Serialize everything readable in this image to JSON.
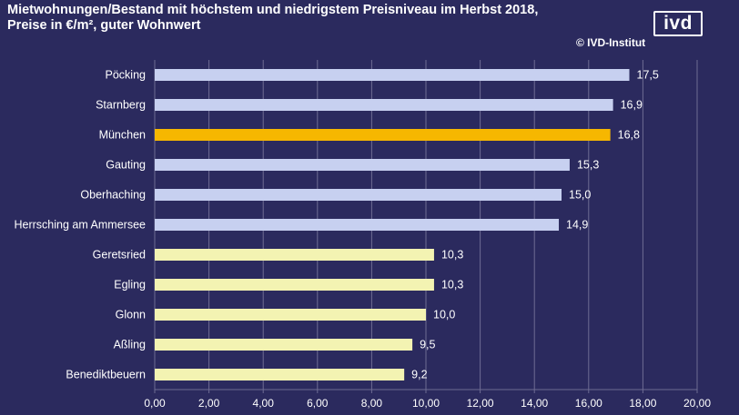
{
  "title": {
    "line1": "Mietwohnungen/Bestand mit höchstem und niedrigstem Preisniveau im Herbst 2018,",
    "line2": "Preise in €/m², guter  Wohnwert"
  },
  "copyright": "© IVD-Institut",
  "logo": "ivd",
  "colors": {
    "background": "#2b2a5e",
    "high": "#c7d0f0",
    "highlight": "#f6b700",
    "low": "#f3f3b2",
    "grid": "#6e6c93"
  },
  "chart_data": {
    "type": "bar",
    "orientation": "horizontal",
    "categories": [
      "Pöcking",
      "Starnberg",
      "München",
      "Gauting",
      "Oberhaching",
      "Herrsching am Ammersee",
      "Geretsried",
      "Egling",
      "Glonn",
      "Aßling",
      "Benediktbeuern"
    ],
    "values": [
      17.5,
      16.9,
      16.8,
      15.3,
      15.0,
      14.9,
      10.3,
      10.3,
      10.0,
      9.5,
      9.2
    ],
    "value_labels": [
      "17,5",
      "16,9",
      "16,8",
      "15,3",
      "15,0",
      "14,9",
      "10,3",
      "10,3",
      "10,0",
      "9,5",
      "9,2"
    ],
    "groups": [
      "high",
      "high",
      "highlight",
      "high",
      "high",
      "high",
      "low",
      "low",
      "low",
      "low",
      "low"
    ],
    "xlim": [
      0,
      20
    ],
    "xticks": [
      0,
      2,
      4,
      6,
      8,
      10,
      12,
      14,
      16,
      18,
      20
    ],
    "xtick_labels": [
      "0,00",
      "2,00",
      "4,00",
      "6,00",
      "8,00",
      "10,00",
      "12,00",
      "14,00",
      "16,00",
      "18,00",
      "20,00"
    ],
    "grid": true
  }
}
